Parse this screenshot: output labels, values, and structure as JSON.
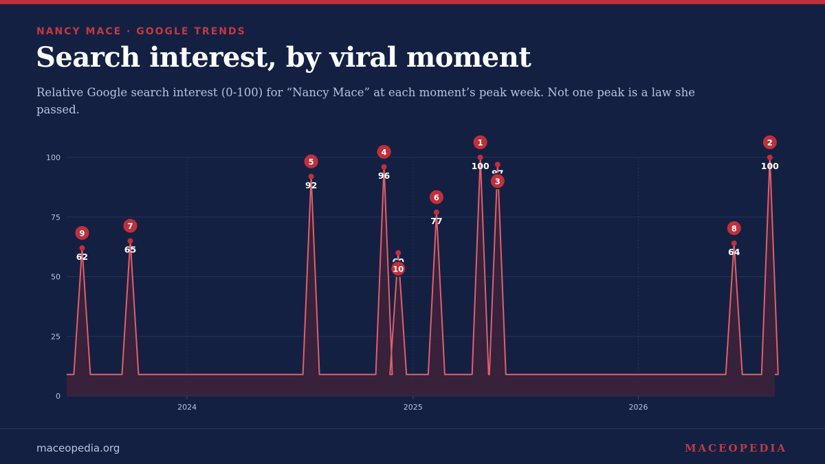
{
  "header": {
    "kicker": "NANCY MACE · GOOGLE TRENDS",
    "title": "Search interest, by viral moment",
    "subtitle": "Relative Google search interest (0-100) for “Nancy Mace” at each moment’s peak week. Not one peak is a law she passed."
  },
  "footer": {
    "site": "maceopedia.org",
    "brand": "MACEOPEDIA"
  },
  "colors": {
    "background": "#142042",
    "accent": "#c0303a",
    "line": "#e0606a",
    "text_muted": "#b9c3dc"
  },
  "chart_data": {
    "type": "area",
    "baseline_value": 9,
    "ylim": [
      0,
      100
    ],
    "y_ticks": [
      "0",
      "25",
      "50",
      "75",
      "100"
    ],
    "x_ticks": [
      {
        "date": "2024-01-01",
        "label": "2024"
      },
      {
        "date": "2025-01-01",
        "label": "2025"
      },
      {
        "date": "2026-01-01",
        "label": "2026"
      }
    ],
    "xlim": [
      "2023-06-20",
      "2026-08-10"
    ],
    "grid": true,
    "peaks": [
      {
        "rank": "9",
        "date": "2023-07-15",
        "value": 62
      },
      {
        "rank": "7",
        "date": "2023-10-01",
        "value": 65
      },
      {
        "rank": "5",
        "date": "2024-07-20",
        "value": 92
      },
      {
        "rank": "4",
        "date": "2024-11-15",
        "value": 96
      },
      {
        "rank": "10",
        "date": "2024-12-08",
        "value": 60
      },
      {
        "rank": "6",
        "date": "2025-02-08",
        "value": 77
      },
      {
        "rank": "1",
        "date": "2025-04-20",
        "value": 100
      },
      {
        "rank": "3",
        "date": "2025-05-18",
        "value": 97
      },
      {
        "rank": "8",
        "date": "2026-06-05",
        "value": 64
      },
      {
        "rank": "2",
        "date": "2026-08-02",
        "value": 100
      }
    ]
  }
}
